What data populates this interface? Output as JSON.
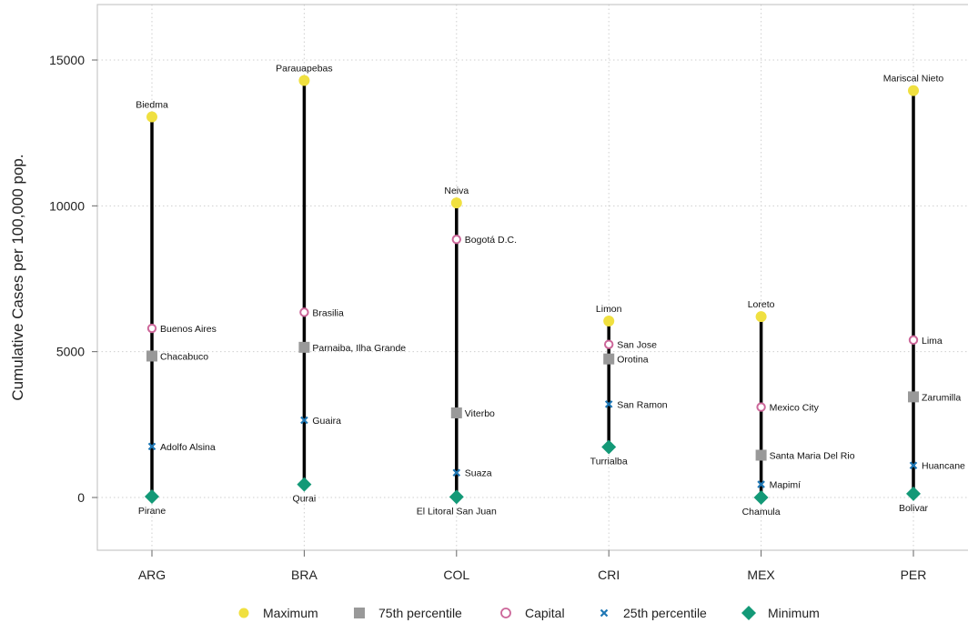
{
  "chart_data": {
    "type": "scatter",
    "ylabel": "Cumulative Cases per 100,000 pop.",
    "xlabel": "",
    "ylim": [
      -1800,
      16800
    ],
    "yticks": [
      0,
      5000,
      10000,
      15000
    ],
    "grid": true,
    "legend_position": "bottom",
    "categories": [
      "ARG",
      "BRA",
      "COL",
      "CRI",
      "MEX",
      "PER"
    ],
    "series": [
      {
        "name": "Maximum",
        "key": "max",
        "color": "#F0E040",
        "marker": "circle",
        "values": [
          13050,
          14300,
          10100,
          6050,
          6200,
          13950
        ],
        "labels": [
          "Biedma",
          "Parauapebas",
          "Neiva",
          "Limon",
          "Loreto",
          "Mariscal Nieto"
        ]
      },
      {
        "name": "75th percentile",
        "key": "p75",
        "color": "#999999",
        "marker": "square",
        "values": [
          4850,
          5150,
          2900,
          4750,
          1450,
          3450
        ],
        "labels": [
          "Chacabuco",
          "Parnaiba, Ilha Grande",
          "Viterbo",
          "Orotina",
          "Santa Maria Del Rio",
          "Zarumilla"
        ]
      },
      {
        "name": "Capital",
        "key": "capital",
        "color": "#CC6699",
        "marker": "ring",
        "values": [
          5800,
          6350,
          8850,
          5250,
          3100,
          5400
        ],
        "labels": [
          "Buenos Aires",
          "Brasilia",
          "Bogotá D.C.",
          "San Jose",
          "Mexico City",
          "Lima"
        ]
      },
      {
        "name": "25th percentile",
        "key": "p25",
        "color": "#1F77B4",
        "marker": "cross",
        "values": [
          1750,
          2650,
          850,
          3200,
          450,
          1100
        ],
        "labels": [
          "Adolfo Alsina",
          "Guaira",
          "Suaza",
          "San Ramon",
          "Mapimí",
          "Huancane"
        ]
      },
      {
        "name": "Minimum",
        "key": "min",
        "color": "#139977",
        "marker": "diamond",
        "values": [
          30,
          450,
          20,
          1730,
          0,
          130
        ],
        "labels": [
          "Pirane",
          "Qurai",
          "El Litoral San Juan",
          "Turrialba",
          "Chamula",
          "Bolivar"
        ]
      }
    ]
  }
}
